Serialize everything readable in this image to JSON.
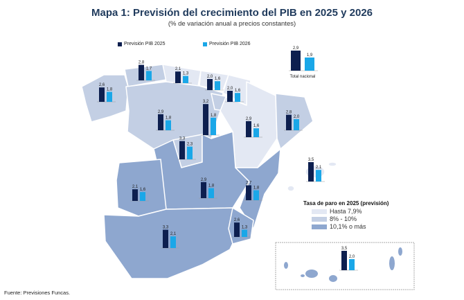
{
  "title": "Mapa 1: Previsión del crecimiento del PIB en 2025 y 2026",
  "subtitle": "(% de variación anual a precios constantes)",
  "footer": "Fuente: Previsiones Funcas.",
  "colors": {
    "pib2025": "#0d1f4f",
    "pib2026": "#1aa7e8",
    "hasta_7_9": "#e3e8f3",
    "8_10": "#c3cfe4",
    "mas_10_1": "#8ea7cf"
  },
  "series_legend": [
    {
      "label": "Previsión PIB 2025"
    },
    {
      "label": "Previsión PIB 2026"
    }
  ],
  "unemployment_legend": {
    "title": "Tasa de paro en 2025 (previsión)",
    "items": [
      {
        "label": "Hasta 7,9%"
      },
      {
        "label": "8% - 10%"
      },
      {
        "label": "10,1% o más"
      }
    ]
  },
  "chart_data": {
    "type": "bar",
    "series": [
      {
        "name": "Previsión PIB 2025"
      },
      {
        "name": "Previsión PIB 2026"
      }
    ],
    "groups": [
      {
        "label": "Total nacional",
        "v2025": "2,9",
        "v2026": "1,9"
      },
      {
        "label": "",
        "v2025": "2,6",
        "v2026": "1,8"
      },
      {
        "label": "",
        "v2025": "2,8",
        "v2026": "1,7"
      },
      {
        "label": "",
        "v2025": "2,1",
        "v2026": "1,3"
      },
      {
        "label": "",
        "v2025": "2,0",
        "v2026": "1,6"
      },
      {
        "label": "",
        "v2025": "2,0",
        "v2026": "1,6"
      },
      {
        "label": "",
        "v2025": "3,2",
        "v2026": "1,8"
      },
      {
        "label": "",
        "v2025": "2,9",
        "v2026": "1,8"
      },
      {
        "label": "",
        "v2025": "2,9",
        "v2026": "1,6"
      },
      {
        "label": "",
        "v2025": "2,8",
        "v2026": "2,0"
      },
      {
        "label": "",
        "v2025": "3,5",
        "v2026": "2,1"
      },
      {
        "label": "",
        "v2025": "3,3",
        "v2026": "2,3"
      },
      {
        "label": "",
        "v2025": "2,9",
        "v2026": "1,8"
      },
      {
        "label": "",
        "v2025": "2,7",
        "v2026": "1,8"
      },
      {
        "label": "",
        "v2025": "2,1",
        "v2026": "1,6"
      },
      {
        "label": "",
        "v2025": "3,3",
        "v2026": "2,1"
      },
      {
        "label": "",
        "v2025": "2,6",
        "v2026": "1,3"
      },
      {
        "label": "",
        "v2025": "3,5",
        "v2026": "2,0"
      }
    ]
  }
}
